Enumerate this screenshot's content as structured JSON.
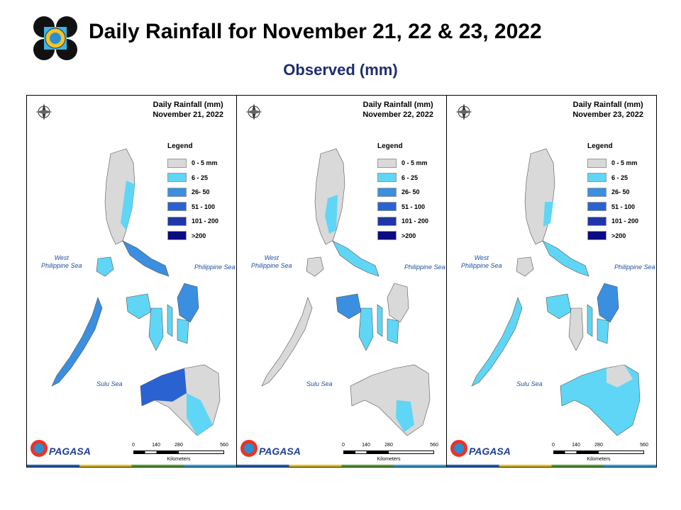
{
  "header": {
    "title": "Daily Rainfall for November 21, 22 & 23, 2022",
    "subtitle": "Observed (mm)"
  },
  "legend": {
    "title": "Legend",
    "items": [
      {
        "label": "0 - 5 mm",
        "color": "#d9d9d9"
      },
      {
        "label": "6 - 25",
        "color": "#5fd6f5"
      },
      {
        "label": "26- 50",
        "color": "#3a8fe0"
      },
      {
        "label": "51 - 100",
        "color": "#2b62d1"
      },
      {
        "label": "101 - 200",
        "color": "#1f36a8"
      },
      {
        "label": ">200",
        "color": "#0b0a80"
      }
    ]
  },
  "labels": {
    "west_sea": "West\nPhilippine Sea",
    "east_sea": "Philippine Sea",
    "south_sea": "Sulu Sea",
    "scale_ticks": [
      "0",
      "140",
      "280",
      "560"
    ],
    "scale_unit": "Kilometers",
    "compass": "N",
    "brand": "PAGASA"
  },
  "panels": [
    {
      "title_line1": "Daily Rainfall (mm)",
      "title_line2": "November 21, 2022"
    },
    {
      "title_line1": "Daily Rainfall (mm)",
      "title_line2": "November 22, 2022"
    },
    {
      "title_line1": "Daily Rainfall (mm)",
      "title_line2": "November 23, 2022"
    }
  ],
  "colors": {
    "panel_border": "#000000",
    "subtitle": "#1f2d6e",
    "sea_label": "#1f4f9a"
  }
}
